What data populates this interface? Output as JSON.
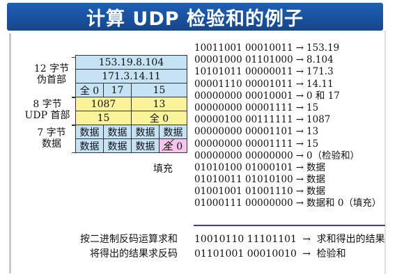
{
  "title": "计算 UDP 检验和的例子",
  "groups": {
    "pseudo_header": [
      "12 字节",
      "伪首部"
    ],
    "udp_header": [
      "8 字节",
      "UDP 首部"
    ],
    "data": [
      "7 字节",
      "数据"
    ]
  },
  "packet": {
    "src_ip": "153.19.8.104",
    "dst_ip": "171.3.14.11",
    "zero": "全 0",
    "protocol": "17",
    "udp_length": "15",
    "src_port": "1087",
    "dst_port": "13",
    "length": "15",
    "checksum": "全 0",
    "data_cell": "数据",
    "pad_cell": "全 0",
    "pad_label": "填充"
  },
  "binary_lines": [
    {
      "bits": "10011001 00010011",
      "arrow": "→",
      "value": "153.19"
    },
    {
      "bits": "00001000 01101000",
      "arrow": "→",
      "value": "8.104"
    },
    {
      "bits": "10101011 00000011",
      "arrow": "→",
      "value": "171.3"
    },
    {
      "bits": "00001110 00001011",
      "arrow": "→",
      "value": "14.11"
    },
    {
      "bits": "00000000 00010001",
      "arrow": "→",
      "value": "0 和 17"
    },
    {
      "bits": "00000000 00001111",
      "arrow": "→",
      "value": "15"
    },
    {
      "bits": "00000100 00111111",
      "arrow": "→",
      "value": "1087"
    },
    {
      "bits": "00000000 00001101",
      "arrow": "→",
      "value": "13"
    },
    {
      "bits": "00000000 00001111",
      "arrow": "→",
      "value": "15"
    },
    {
      "bits": "00000000 00000000",
      "arrow": "→",
      "value": "0（检验和）"
    },
    {
      "bits": "01010100 01000101",
      "arrow": "→",
      "value": "数据"
    },
    {
      "bits": "01010011 01010100",
      "arrow": "→",
      "value": "数据"
    },
    {
      "bits": "01001001 01001110",
      "arrow": "→",
      "value": "数据"
    },
    {
      "bits": "01000111 00000000",
      "arrow": "→",
      "value": "数据和 0（填充）"
    }
  ],
  "sum": {
    "label": "按二进制反码运算求和",
    "bits": "10010110 11101101",
    "arrow": "→",
    "value": "求和得出的结果"
  },
  "checksum_result": {
    "label": "将得出的结果求反码",
    "bits": "01101001 00010010",
    "arrow": "→",
    "value": "检验和"
  }
}
